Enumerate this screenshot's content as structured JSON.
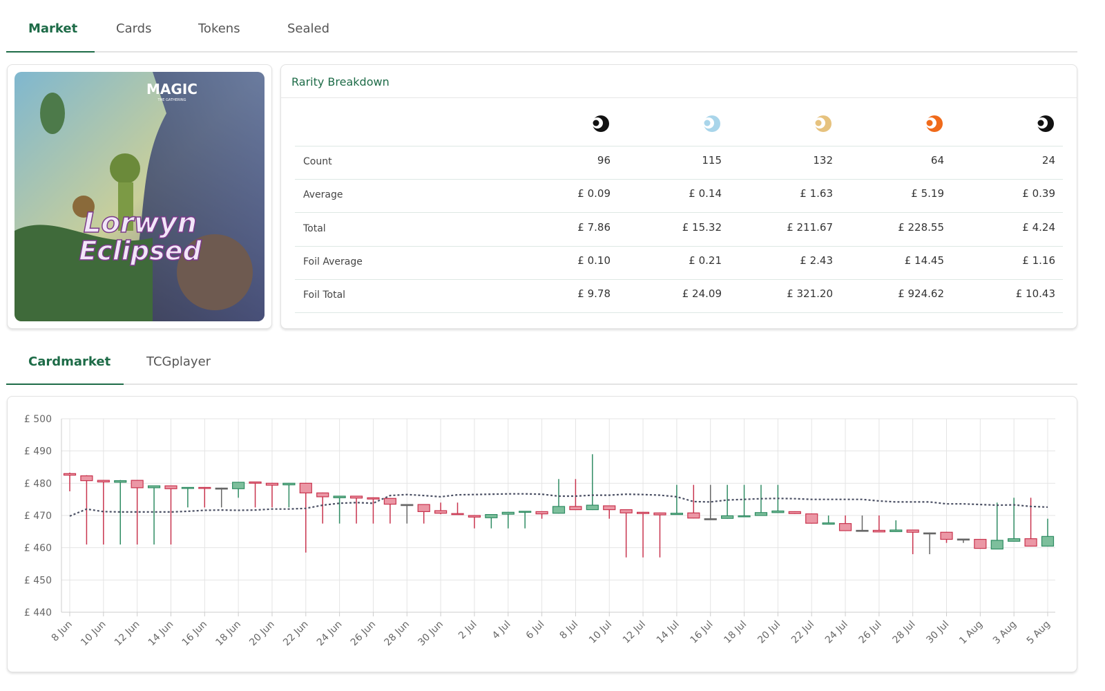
{
  "tabs": [
    "Market",
    "Cards",
    "Tokens",
    "Sealed"
  ],
  "art": {
    "brand": "MAGIC",
    "brand_sub": "THE GATHERING",
    "title_line1": "Lorwyn",
    "title_line2": "Eclipsed"
  },
  "panel_title": "Rarity Breakdown",
  "table": {
    "rows": [
      {
        "label": "Count",
        "values": [
          "96",
          "115",
          "132",
          "64",
          "24"
        ]
      },
      {
        "label": "Average",
        "values": [
          "£ 0.09",
          "£ 0.14",
          "£ 1.63",
          "£ 5.19",
          "£ 0.39"
        ]
      },
      {
        "label": "Total",
        "values": [
          "£ 7.86",
          "£ 15.32",
          "£ 211.67",
          "£ 228.55",
          "£ 4.24"
        ]
      },
      {
        "label": "Foil Average",
        "values": [
          "£ 0.10",
          "£ 0.21",
          "£ 2.43",
          "£ 14.45",
          "£ 1.16"
        ]
      },
      {
        "label": "Foil Total",
        "values": [
          "£ 9.78",
          "£ 24.09",
          "£ 321.20",
          "£ 924.62",
          "£ 10.43"
        ]
      }
    ]
  },
  "chart_tabs": [
    "Cardmarket",
    "TCGplayer"
  ],
  "chart_data": {
    "type": "candlestick",
    "categories": [
      "8 Jun",
      null,
      "10 Jun",
      null,
      "12 Jun",
      null,
      "14 Jun",
      null,
      "16 Jun",
      null,
      "18 Jun",
      null,
      "20 Jun",
      null,
      "22 Jun",
      null,
      "24 Jun",
      null,
      "26 Jun",
      null,
      "28 Jun",
      null,
      "30 Jun",
      null,
      "2 Jul",
      null,
      "4 Jul",
      null,
      "6 Jul",
      null,
      "8 Jul",
      null,
      "10 Jul",
      null,
      "12 Jul",
      null,
      "14 Jul",
      null,
      "16 Jul",
      null,
      "18 Jul",
      null,
      "20 Jul",
      null,
      "22 Jul",
      null,
      "24 Jul",
      null,
      "26 Jul",
      null,
      "28 Jul",
      null,
      "30 Jul",
      null,
      "1 Aug",
      null,
      "3 Aug",
      null,
      "5 Aug"
    ],
    "open": [
      483,
      482.3,
      480.9,
      480.3,
      480.9,
      478.6,
      479.2,
      478.4,
      478.7,
      478.5,
      478.3,
      480.4,
      480,
      479.5,
      480,
      477,
      475.5,
      476,
      475.5,
      475.3,
      473.4,
      473.4,
      471.5,
      470.6,
      470,
      469.3,
      470.4,
      471,
      471.2,
      470.7,
      472.8,
      471.8,
      473,
      471.8,
      471,
      470.8,
      470.3,
      470.8,
      469,
      469.1,
      469.6,
      470,
      470.9,
      471.2,
      470.5,
      467.3,
      467.5,
      465.4,
      465.4,
      465,
      465.5,
      464.6,
      464.8,
      462.7,
      462.6,
      459.6,
      462,
      462.8,
      460.5
    ],
    "close": [
      482.5,
      480.8,
      480.4,
      480.8,
      478.6,
      479.2,
      478.3,
      478.7,
      478.4,
      478.5,
      480.3,
      480,
      479.4,
      480,
      477,
      475.8,
      476,
      475.4,
      475.1,
      473.5,
      473.4,
      471.2,
      470.7,
      470.3,
      469.5,
      470.3,
      471,
      471.3,
      470.5,
      472.8,
      471.8,
      473.2,
      471.8,
      470.8,
      470.6,
      470.2,
      470.7,
      469.2,
      469,
      469.9,
      469.9,
      470.9,
      471.4,
      470.6,
      467.6,
      467.7,
      465.3,
      465.4,
      464.9,
      465.5,
      464.8,
      464.6,
      462.6,
      462.7,
      459.8,
      462.3,
      462.8,
      460.5,
      463.5
    ],
    "high": [
      483.3,
      482.5,
      481,
      481,
      481,
      479.3,
      479.3,
      478.8,
      478.8,
      478.6,
      480.4,
      480.5,
      480.1,
      480.1,
      480.1,
      477.1,
      476.1,
      476.1,
      475.6,
      475.4,
      473.5,
      473.5,
      474,
      474,
      470.1,
      470.4,
      471.1,
      471.4,
      471.3,
      481.3,
      481.3,
      489,
      473.1,
      471.9,
      471.1,
      470.9,
      479.5,
      479.5,
      479.5,
      479.5,
      479.5,
      479.5,
      479.5,
      471.3,
      470.6,
      470,
      470,
      470,
      470,
      468.5,
      465.6,
      464.7,
      464.9,
      462.8,
      462.7,
      474,
      475.5,
      475.5,
      469
    ],
    "low": [
      477.5,
      461,
      461,
      461,
      461,
      461,
      461,
      472.5,
      472.5,
      472.5,
      475.5,
      472.5,
      472.5,
      472.5,
      458.5,
      467.5,
      467.5,
      467.5,
      467.5,
      467.5,
      467.5,
      467.5,
      470.4,
      470.2,
      466,
      466,
      466,
      466,
      469,
      470.6,
      471.7,
      471.7,
      469,
      457,
      457,
      457,
      470.2,
      469.1,
      468.9,
      469,
      469.7,
      469.9,
      470.8,
      470.5,
      467.5,
      467.2,
      465.2,
      465.3,
      464.8,
      464.9,
      458,
      458,
      461.5,
      461.5,
      459.7,
      459.5,
      461.9,
      460.4,
      460.4
    ],
    "colors": {
      "up": "#2e8b62",
      "up_fill": "#7dbf9c",
      "down": "#c8334d",
      "down_fill": "#eb97a5",
      "flat": "#666666"
    },
    "moving_average": {
      "color": "#4a4f63",
      "values": [
        469.8,
        472,
        471.2,
        471.1,
        471.1,
        471.1,
        471.1,
        471.3,
        471.6,
        471.7,
        471.6,
        471.7,
        472,
        472,
        472.2,
        473.2,
        473.8,
        474,
        473.8,
        476.2,
        476.5,
        476.2,
        475.8,
        476.4,
        476.5,
        476.6,
        476.7,
        476.7,
        476.6,
        476,
        476,
        476.3,
        476.3,
        476.6,
        476.5,
        476.3,
        475.8,
        474.3,
        474.2,
        474.8,
        475,
        475.2,
        475.3,
        475.2,
        475,
        475,
        475,
        475,
        474.5,
        474.2,
        474.2,
        474.2,
        473.6,
        473.6,
        473.4,
        473.2,
        473.3,
        472.8,
        472.6
      ]
    },
    "ylim": [
      440,
      500
    ],
    "yticks": [
      {
        "value": 440,
        "label": "£ 440"
      },
      {
        "value": 450,
        "label": "£ 450"
      },
      {
        "value": 460,
        "label": "£ 460"
      },
      {
        "value": 470,
        "label": "£ 470"
      },
      {
        "value": 480,
        "label": "£ 480"
      },
      {
        "value": 490,
        "label": "£ 490"
      },
      {
        "value": 500,
        "label": "£ 500"
      }
    ],
    "grid": true
  }
}
